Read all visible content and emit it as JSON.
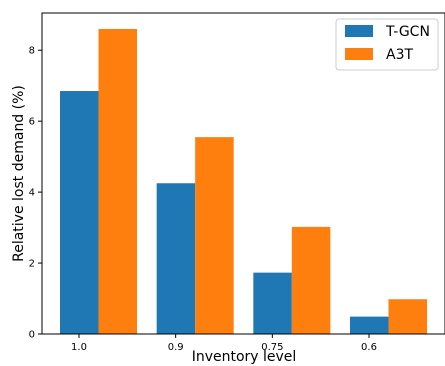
{
  "chart_data": {
    "type": "bar",
    "title": "",
    "xlabel": "Inventory level",
    "ylabel": "Relative lost demand (%)",
    "categories": [
      "1.0",
      "0.9",
      "0.75",
      "0.6"
    ],
    "series": [
      {
        "name": "T-GCN",
        "color": "#1f77b4",
        "values": [
          6.85,
          4.25,
          1.73,
          0.49
        ]
      },
      {
        "name": "A3T",
        "color": "#ff7f0e",
        "values": [
          8.6,
          5.55,
          3.02,
          0.98
        ]
      }
    ],
    "ylim": [
      0,
      9.05
    ],
    "yticks": [
      0,
      2,
      4,
      6,
      8
    ],
    "grid": false,
    "legend_position": "top-right"
  }
}
